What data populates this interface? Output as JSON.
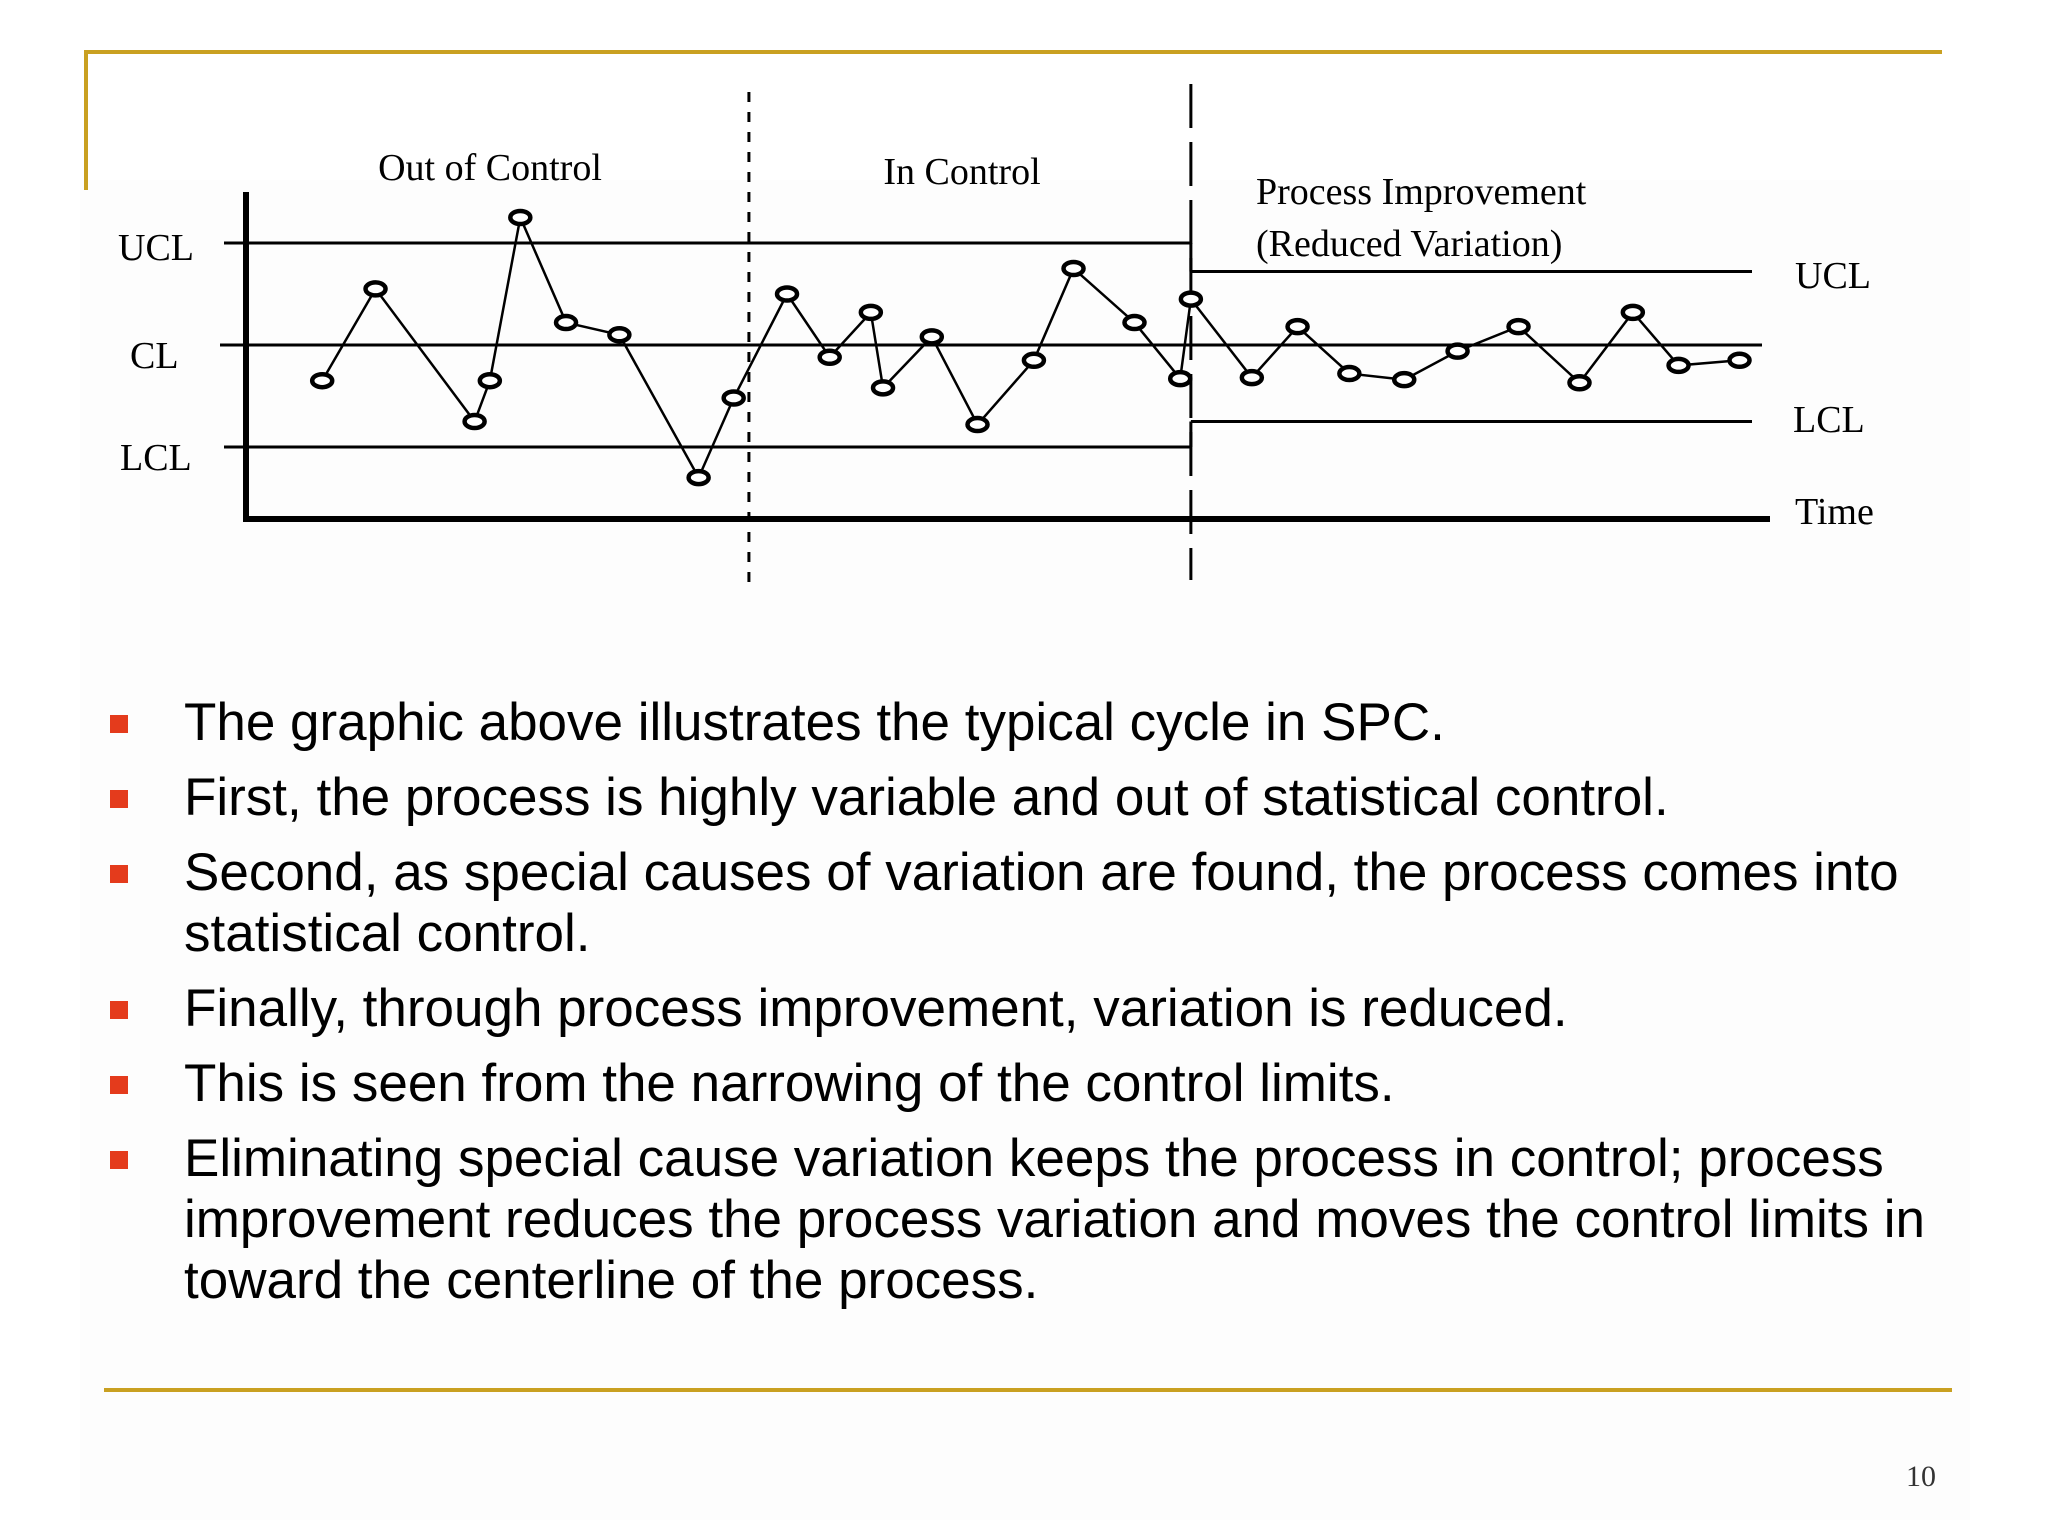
{
  "chart_data": {
    "type": "line",
    "title": "",
    "xlabel": "Time",
    "ylabel": "",
    "y_labels": {
      "ucl": "UCL",
      "cl": "CL",
      "lcl": "LCL",
      "ucl_right": "UCL",
      "lcl_right": "LCL"
    },
    "phases": [
      {
        "name": "out_of_control",
        "label": "Out of Control",
        "label_lines": [
          "Out of Control"
        ]
      },
      {
        "name": "in_control",
        "label": "In Control",
        "label_lines": [
          "In Control"
        ]
      },
      {
        "name": "process_improvement",
        "label": "Process Improvement (Reduced Variation)",
        "label_lines": [
          "Process Improvement",
          "(Reduced Variation)"
        ]
      }
    ],
    "control_limits": {
      "before_improvement": {
        "ucl": 1.0,
        "cl": 0.0,
        "lcl": -1.0
      },
      "after_improvement": {
        "ucl": 0.72,
        "cl": 0.0,
        "lcl": -0.75
      }
    },
    "x_range": [
      0,
      1
    ],
    "phase_boundaries": [
      0.33,
      0.62
    ],
    "ylim": [
      -1.8,
      1.4
    ],
    "grid": false,
    "series": [
      {
        "points": [
          {
            "x": 0.05,
            "y": -0.35
          },
          {
            "x": 0.085,
            "y": 0.55
          },
          {
            "x": 0.15,
            "y": -0.75
          },
          {
            "x": 0.16,
            "y": -0.35
          },
          {
            "x": 0.18,
            "y": 1.25
          },
          {
            "x": 0.21,
            "y": 0.22
          },
          {
            "x": 0.245,
            "y": 0.1
          },
          {
            "x": 0.297,
            "y": -1.3
          },
          {
            "x": 0.32,
            "y": -0.52
          },
          {
            "x": 0.355,
            "y": 0.5
          },
          {
            "x": 0.383,
            "y": -0.12
          },
          {
            "x": 0.41,
            "y": 0.32
          },
          {
            "x": 0.418,
            "y": -0.42
          },
          {
            "x": 0.45,
            "y": 0.08
          },
          {
            "x": 0.48,
            "y": -0.78
          },
          {
            "x": 0.517,
            "y": -0.15
          },
          {
            "x": 0.543,
            "y": 0.75
          },
          {
            "x": 0.583,
            "y": 0.22
          },
          {
            "x": 0.613,
            "y": -0.33
          },
          {
            "x": 0.62,
            "y": 0.45
          },
          {
            "x": 0.66,
            "y": -0.32
          },
          {
            "x": 0.69,
            "y": 0.18
          },
          {
            "x": 0.724,
            "y": -0.28
          },
          {
            "x": 0.76,
            "y": -0.34
          },
          {
            "x": 0.795,
            "y": -0.06
          },
          {
            "x": 0.835,
            "y": 0.18
          },
          {
            "x": 0.875,
            "y": -0.37
          },
          {
            "x": 0.91,
            "y": 0.32
          },
          {
            "x": 0.94,
            "y": -0.2
          },
          {
            "x": 0.98,
            "y": -0.15
          }
        ]
      }
    ]
  },
  "bullets": [
    {
      "text": "The graphic above illustrates the typical cycle in SPC."
    },
    {
      "text": "First, the process is highly variable and out of statistical control."
    },
    {
      "text": "Second, as special causes of variation are found, the process comes into statistical control."
    },
    {
      "text": "Finally, through process improvement, variation is reduced."
    },
    {
      "text": "This is seen from the narrowing of the control limits."
    },
    {
      "text": "Eliminating special cause variation keeps the process in control; process improvement reduces the process variation and moves the control limits in toward the centerline of the process."
    }
  ],
  "page_number": "10",
  "colors": {
    "frame": "#c9a021",
    "bullet_marker": "#e43b1c",
    "text": "#000000"
  }
}
